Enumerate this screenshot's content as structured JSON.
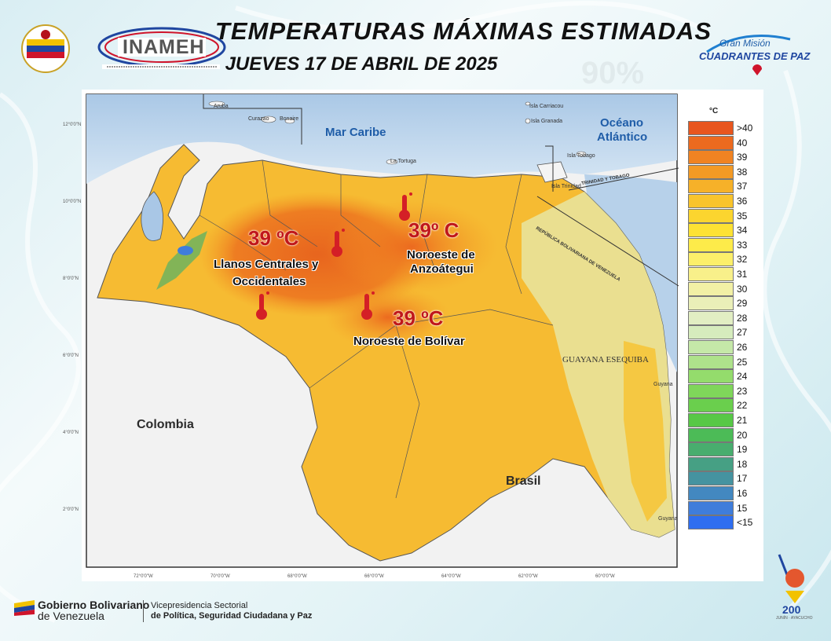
{
  "header": {
    "title": "TEMPERATURAS MÁXIMAS ESTIMADAS",
    "subtitle": "JUEVES 17 DE ABRIL DE 2025",
    "inameh_logo_text": "INAMEH",
    "mision_logo_line1": "Gran Misión",
    "mision_logo_line2": "CUADRANTES DE PAZ"
  },
  "map": {
    "sea_labels": [
      "Mar Caribe",
      "Océano",
      "Atlántico"
    ],
    "country_labels": [
      "Colombia",
      "Brasil"
    ],
    "region_label": "GUAYANA ESEQUIBA",
    "trinidad_label": "TRINIDAD Y TOBAGO",
    "border_label": "REPÚBLICA BOLIVARIANA DE VENEZUELA",
    "islands": [
      "Aruba",
      "Curazao",
      "Bonaire",
      "La Tortuga",
      "Isla Carriacou",
      "Isla Granada",
      "Isla Tobago",
      "Isla Trinidad",
      "Guyana",
      "Guyana"
    ],
    "lat_labels": [
      "12°0'0\"N",
      "10°0'0\"N",
      "8°0'0\"N",
      "6°0'0\"N",
      "4°0'0\"N",
      "2°0'0\"N"
    ],
    "lon_labels": [
      "72°0'0\"W",
      "70°0'0\"W",
      "68°0'0\"W",
      "66°0'0\"W",
      "64°0'0\"W",
      "62°0'0\"W",
      "60°0'0\"W"
    ],
    "zones": [
      {
        "temp": "39 ºC",
        "name_line1": "Llanos Centrales y",
        "name_line2": "Occidentales"
      },
      {
        "temp": "39º C",
        "name_line1": "Noroeste de",
        "name_line2": "Anzoátegui"
      },
      {
        "temp": "39 ºC",
        "name_line1": "Noroeste de Bolívar",
        "name_line2": ""
      }
    ]
  },
  "legend": {
    "unit": "°C",
    "entries": [
      {
        "label": ">40",
        "color": "#e8561e"
      },
      {
        "label": "40",
        "color": "#ec6a1f"
      },
      {
        "label": "39",
        "color": "#f08322"
      },
      {
        "label": "38",
        "color": "#f39a25"
      },
      {
        "label": "37",
        "color": "#f6b129"
      },
      {
        "label": "36",
        "color": "#f9c42c"
      },
      {
        "label": "35",
        "color": "#fbd52f"
      },
      {
        "label": "34",
        "color": "#fde233"
      },
      {
        "label": "33",
        "color": "#fdeb4a"
      },
      {
        "label": "32",
        "color": "#fcef6a"
      },
      {
        "label": "31",
        "color": "#f8f08a"
      },
      {
        "label": "30",
        "color": "#f2f0a5"
      },
      {
        "label": "29",
        "color": "#eaefb8"
      },
      {
        "label": "28",
        "color": "#e2eec3"
      },
      {
        "label": "27",
        "color": "#d6ecbd"
      },
      {
        "label": "26",
        "color": "#c5e8a8"
      },
      {
        "label": "25",
        "color": "#aee28b"
      },
      {
        "label": "24",
        "color": "#94dc6c"
      },
      {
        "label": "23",
        "color": "#7fd65a"
      },
      {
        "label": "22",
        "color": "#6acf4d"
      },
      {
        "label": "21",
        "color": "#57c846"
      },
      {
        "label": "20",
        "color": "#4cbb57"
      },
      {
        "label": "19",
        "color": "#48ad6e"
      },
      {
        "label": "18",
        "color": "#46a084"
      },
      {
        "label": "17",
        "color": "#4593a0"
      },
      {
        "label": "16",
        "color": "#4388c0"
      },
      {
        "label": "15",
        "color": "#3f7ddb"
      },
      {
        "label": "<15",
        "color": "#2f6ef0"
      }
    ]
  },
  "footer": {
    "gov_line1": "Gobierno Bolivariano",
    "gov_line2": "de Venezuela",
    "vice_line1": "Vicepresidencia Sectorial",
    "vice_line2": "de Política, Seguridad Ciudadana y Paz",
    "anniv_number": "200",
    "anniv_text": "JUNÍN · AYACUCHO"
  }
}
